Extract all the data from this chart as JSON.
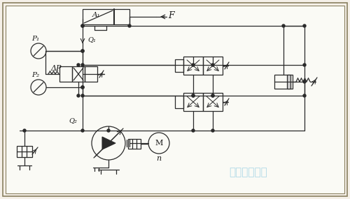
{
  "bg_color": "#f5f0e8",
  "inner_bg": "#ffffff",
  "line_color": "#2a2a2a",
  "text_color": "#1a1a1a",
  "fig_width": 5.0,
  "fig_height": 2.85,
  "dpi": 100,
  "border_color": "#c8c0a0",
  "labels": {
    "P1": "P₁",
    "P2": "P₂",
    "Q1": "Q₁",
    "Q2": "Q₂",
    "deltaP": "ΔP",
    "F": "F",
    "M": "M",
    "n": "n",
    "A1": "A₁"
  },
  "watermark": "废品回收商网"
}
